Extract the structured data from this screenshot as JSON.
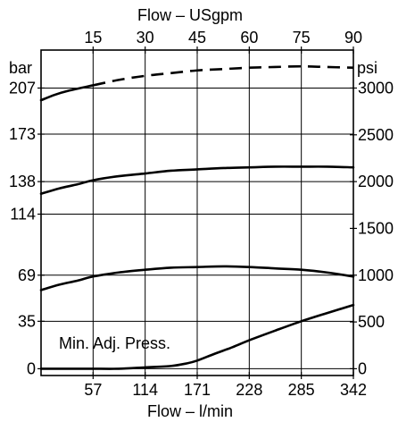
{
  "chart_data": {
    "type": "line",
    "xlabel_bottom": "Flow – l/min",
    "xlabel_top": "Flow – USgpm",
    "ylabel_left": "bar",
    "ylabel_right": "psi",
    "xlim": [
      0,
      342
    ],
    "ylim": [
      -5,
      235
    ],
    "x_ticks_bottom": [
      57,
      114,
      171,
      228,
      285,
      342
    ],
    "x_tick_labels_bottom": [
      "57",
      "114",
      "171",
      "228",
      "285",
      "342"
    ],
    "x_ticks_top": [
      15,
      30,
      45,
      60,
      75,
      90
    ],
    "x_tick_labels_top": [
      "15",
      "30",
      "45",
      "60",
      "75",
      "90"
    ],
    "y_ticks_left": [
      0,
      35,
      69,
      114,
      138,
      173,
      207
    ],
    "y_tick_labels_left": [
      "0",
      "35",
      "69",
      "114",
      "138",
      "173",
      "207"
    ],
    "y_ticks_right": [
      0,
      500,
      1000,
      1500,
      2000,
      2500,
      3000
    ],
    "y_tick_labels_right": [
      "0",
      "500",
      "1000",
      "1500",
      "2000",
      "2500",
      "3000"
    ],
    "grid": true,
    "annotation": "Min. Adj. Press.",
    "series": [
      {
        "style": "solid-dashed",
        "dash_from_x": 57,
        "x": [
          0,
          15,
          30,
          57,
          85,
          114,
          142,
          171,
          200,
          228,
          256,
          285,
          313,
          342
        ],
        "y": [
          198,
          202,
          205,
          209,
          213,
          216,
          218,
          220,
          221,
          222,
          222.5,
          223,
          222.5,
          222
        ]
      },
      {
        "style": "solid",
        "x": [
          0,
          20,
          40,
          57,
          85,
          114,
          142,
          171,
          200,
          228,
          256,
          285,
          313,
          342
        ],
        "y": [
          129,
          133,
          136,
          139,
          142,
          144,
          146,
          147,
          148,
          148.5,
          149,
          149,
          149,
          148.5
        ]
      },
      {
        "style": "solid",
        "x": [
          0,
          20,
          40,
          57,
          85,
          114,
          142,
          171,
          200,
          228,
          256,
          285,
          313,
          342
        ],
        "y": [
          58,
          62,
          65,
          68,
          71,
          73,
          74.5,
          75,
          75.5,
          75,
          74,
          73,
          71,
          68
        ]
      },
      {
        "style": "solid",
        "x": [
          0,
          40,
          57,
          85,
          114,
          142,
          160,
          171,
          190,
          210,
          228,
          256,
          285,
          313,
          342
        ],
        "y": [
          0,
          0,
          0,
          0,
          1,
          2,
          4,
          6,
          11,
          16,
          21,
          28,
          35,
          41,
          47
        ]
      }
    ]
  }
}
